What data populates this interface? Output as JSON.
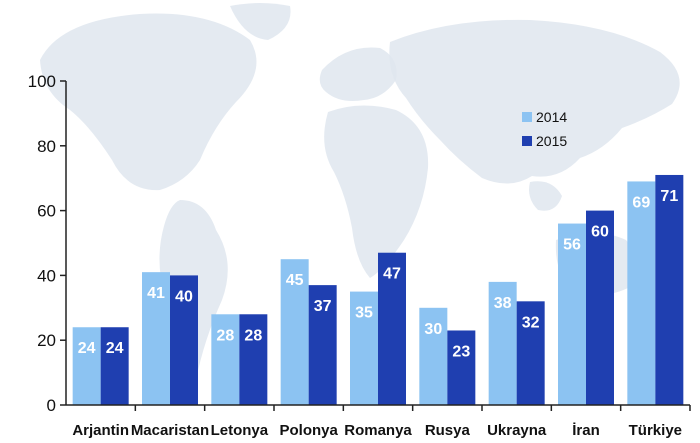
{
  "chart_data": {
    "type": "bar",
    "title": "",
    "xlabel": "",
    "ylabel": "",
    "ylim": [
      0,
      100
    ],
    "yticks": [
      0,
      20,
      40,
      60,
      80,
      100
    ],
    "grid": false,
    "legend_position": "upper-right",
    "categories": [
      "Arjantin",
      "Macaristan",
      "Letonya",
      "Polonya",
      "Romanya",
      "Rusya",
      "Ukrayna",
      "İran",
      "Türkiye"
    ],
    "series": [
      {
        "name": "2014",
        "color": "#8cc3f2",
        "values": [
          24,
          41,
          28,
          45,
          35,
          30,
          38,
          56,
          69
        ]
      },
      {
        "name": "2015",
        "color": "#1f3fb0",
        "values": [
          24,
          40,
          28,
          37,
          47,
          23,
          32,
          60,
          71
        ]
      }
    ],
    "background": "world-map",
    "map_color": "#dfe6ee"
  }
}
